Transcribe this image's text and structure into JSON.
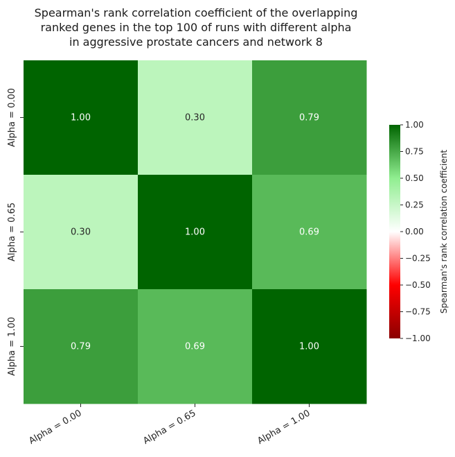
{
  "chart_data": {
    "type": "heatmap",
    "title_lines": [
      "Spearman's rank correlation coefficient of the overlapping",
      "ranked genes in the top 100 of runs with different alpha",
      "in aggressive prostate cancers and network 8"
    ],
    "row_labels": [
      "Alpha = 0.00",
      "Alpha = 0.65",
      "Alpha = 1.00"
    ],
    "col_labels": [
      "Alpha = 0.00",
      "Alpha = 0.65",
      "Alpha = 1.00"
    ],
    "values": [
      [
        1.0,
        0.3,
        0.79
      ],
      [
        0.3,
        1.0,
        0.69
      ],
      [
        0.79,
        0.69,
        1.0
      ]
    ],
    "cell_labels": [
      [
        "1.00",
        "0.30",
        "0.79"
      ],
      [
        "0.30",
        "1.00",
        "0.69"
      ],
      [
        "0.79",
        "0.69",
        "1.00"
      ]
    ],
    "colorbar": {
      "label": "Spearman's rank correlation coefficient",
      "vmin": -1.0,
      "vmax": 1.0,
      "ticks": [
        1.0,
        0.75,
        0.5,
        0.25,
        0.0,
        -0.25,
        -0.5,
        -0.75,
        -1.0
      ],
      "tick_labels": [
        "1.00",
        "0.75",
        "0.50",
        "0.25",
        "0.00",
        "−0.25",
        "−0.50",
        "−0.75",
        "−1.00"
      ],
      "colors": [
        "#8b0000",
        "#ff0000",
        "#ffffff",
        "#90ee90",
        "#006400"
      ]
    }
  }
}
